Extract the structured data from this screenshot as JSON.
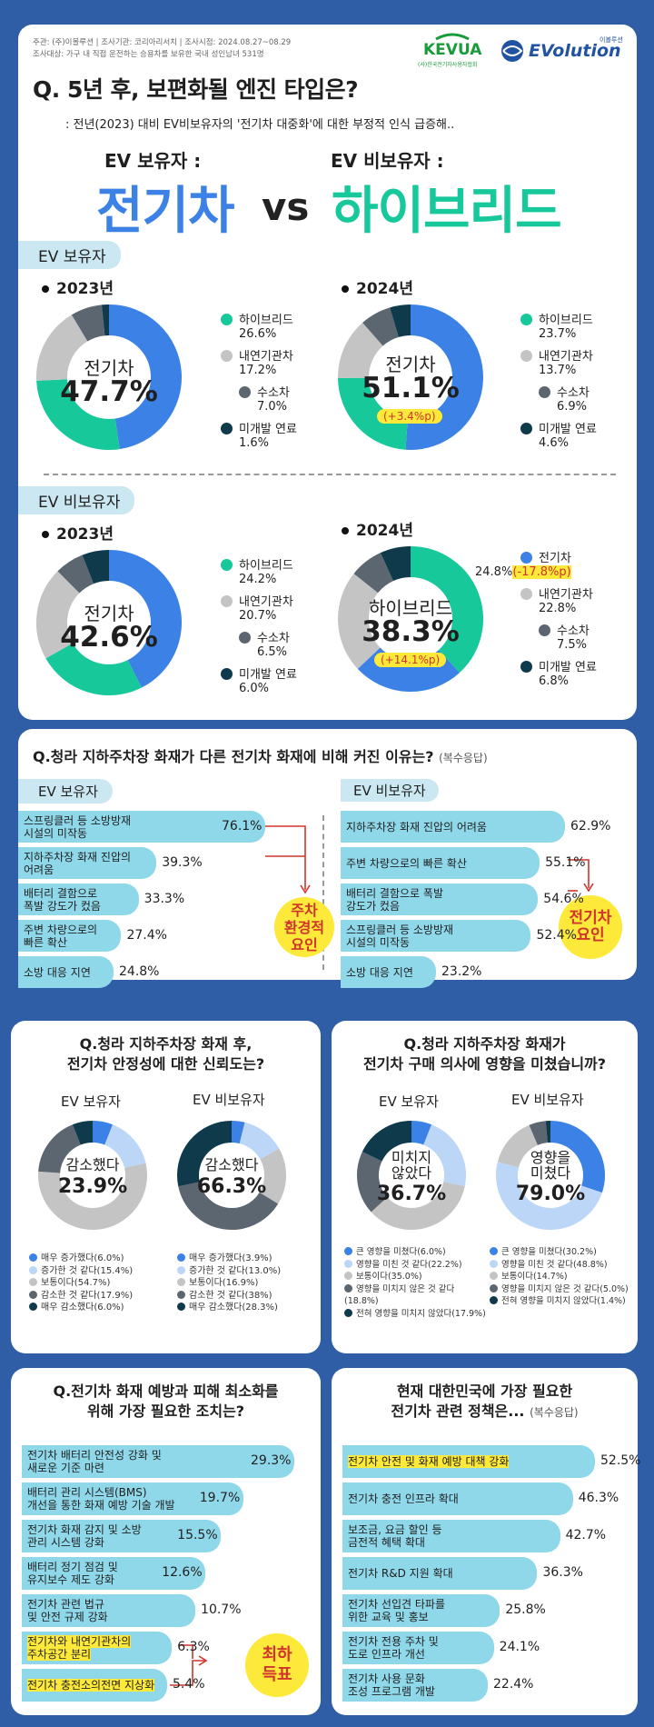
{
  "meta": {
    "line1": "주관: (주)이볼루션  |  조사기관: 코리아리서치  |  조사시점: 2024.08.27~08.29",
    "line2": "조사대상: 가구 내 직접 운전하는 승용차를 보유한 국내 성인남녀 531명"
  },
  "logos": {
    "kevua": "KEVUA",
    "kevua_sub": "(사)한국전기차사용자협회",
    "evolution": "EVolution",
    "evolution_tag": "이볼루션"
  },
  "colors": {
    "hybrid": "#17c99a",
    "ice": "#c4c4c4",
    "hydrogen": "#5c6670",
    "undeveloped": "#0f3a4c",
    "ev": "#3c82e6",
    "bar": "#8fd8ea",
    "highlight": "#fde93a",
    "red": "#d0342c"
  },
  "s1": {
    "question": "Q. 5년 후, 보편화될 엔진 타입은?",
    "subtitle": ": 전년(2023) 대비 EV비보유자의 '전기차 대중화'에 대한 부정적 인식 급증해..",
    "owner_label": "EV 보유자 :",
    "owner_answer": "전기차",
    "vs": "vs",
    "non_label": "EV 비보유자 :",
    "non_answer": "하이브리드",
    "sec_owner": "EV 보유자",
    "sec_non": "EV 비보유자"
  },
  "chart_data": [
    {
      "id": "owner2023",
      "type": "pie",
      "title": "EV 보유자 2023년",
      "year": "2023년",
      "center_name": "전기차",
      "center_value": "47.7%",
      "slices": [
        {
          "label": "전기차",
          "value": 47.7,
          "color": "#3c82e6"
        },
        {
          "label": "하이브리드",
          "value": 26.6,
          "color": "#17c99a"
        },
        {
          "label": "내연기관차",
          "value": 17.2,
          "color": "#c4c4c4"
        },
        {
          "label": "수소차",
          "value": 7.0,
          "color": "#5c6670"
        },
        {
          "label": "미개발 연료",
          "value": 1.6,
          "color": "#0f3a4c"
        }
      ],
      "legend": [
        {
          "label": "하이브리드",
          "pct": "26.6%"
        },
        {
          "label": "내연기관차",
          "pct": "17.2%"
        },
        {
          "label": "수소차",
          "pct": "7.0%"
        },
        {
          "label": "미개발 연료",
          "pct": "1.6%"
        }
      ]
    },
    {
      "id": "owner2024",
      "type": "pie",
      "title": "EV 보유자 2024년",
      "year": "2024년",
      "center_name": "전기차",
      "center_value": "51.1%",
      "delta": "(+3.4%p)",
      "slices": [
        {
          "label": "전기차",
          "value": 51.1,
          "color": "#3c82e6"
        },
        {
          "label": "하이브리드",
          "value": 23.7,
          "color": "#17c99a"
        },
        {
          "label": "내연기관차",
          "value": 13.7,
          "color": "#c4c4c4"
        },
        {
          "label": "수소차",
          "value": 6.9,
          "color": "#5c6670"
        },
        {
          "label": "미개발 연료",
          "value": 4.6,
          "color": "#0f3a4c"
        }
      ],
      "legend": [
        {
          "label": "하이브리드",
          "pct": "23.7%"
        },
        {
          "label": "내연기관차",
          "pct": "13.7%"
        },
        {
          "label": "수소차",
          "pct": "6.9%"
        },
        {
          "label": "미개발 연료",
          "pct": "4.6%"
        }
      ]
    },
    {
      "id": "non2023",
      "type": "pie",
      "title": "EV 비보유자 2023년",
      "year": "2023년",
      "center_name": "전기차",
      "center_value": "42.6%",
      "slices": [
        {
          "label": "전기차",
          "value": 42.6,
          "color": "#3c82e6"
        },
        {
          "label": "하이브리드",
          "value": 24.2,
          "color": "#17c99a"
        },
        {
          "label": "내연기관차",
          "value": 20.7,
          "color": "#c4c4c4"
        },
        {
          "label": "수소차",
          "value": 6.5,
          "color": "#5c6670"
        },
        {
          "label": "미개발 연료",
          "value": 6.0,
          "color": "#0f3a4c"
        }
      ],
      "legend": [
        {
          "label": "하이브리드",
          "pct": "24.2%"
        },
        {
          "label": "내연기관차",
          "pct": "20.7%"
        },
        {
          "label": "수소차",
          "pct": "6.5%"
        },
        {
          "label": "미개발 연료",
          "pct": "6.0%"
        }
      ]
    },
    {
      "id": "non2024",
      "type": "pie",
      "title": "EV 비보유자 2024년",
      "year": "2024년",
      "center_name": "하이브리드",
      "center_value": "38.3%",
      "delta": "(+14.1%p)",
      "slices": [
        {
          "label": "하이브리드",
          "value": 38.3,
          "color": "#17c99a"
        },
        {
          "label": "전기차",
          "value": 24.8,
          "color": "#3c82e6"
        },
        {
          "label": "내연기관차",
          "value": 22.8,
          "color": "#c4c4c4"
        },
        {
          "label": "수소차",
          "value": 7.5,
          "color": "#5c6670"
        },
        {
          "label": "미개발 연료",
          "value": 6.8,
          "color": "#0f3a4c"
        }
      ],
      "legend": [
        {
          "label": "전기차",
          "pct": "24.8%",
          "delta": "(-17.8%p)"
        },
        {
          "label": "내연기관차",
          "pct": "22.8%"
        },
        {
          "label": "수소차",
          "pct": "7.5%"
        },
        {
          "label": "미개발 연료",
          "pct": "6.8%"
        }
      ]
    },
    {
      "id": "fire_owner",
      "type": "bar",
      "title": "EV 보유자",
      "categories": [
        "스프링클러 등 소방방재 시설의 미작동",
        "지하주차장 화재 진압의 어려움",
        "배터리 결함으로 폭발 강도가 컸음",
        "주변 차량으로의 빠른 확산",
        "소방 대응 지연"
      ],
      "values": [
        76.1,
        39.3,
        33.3,
        27.4,
        24.8
      ],
      "labels": [
        "76.1%",
        "39.3%",
        "33.3%",
        "27.4%",
        "24.8%"
      ]
    },
    {
      "id": "fire_non",
      "type": "bar",
      "title": "EV 비보유자",
      "categories": [
        "지하주차장 화재 진압의 어려움",
        "주변 차량으로의 빠른 확산",
        "배터리 결함으로 폭발 강도가 컸음",
        "스프링클러 등 소방방재 시설의 미작동",
        "소방 대응 지연"
      ],
      "values": [
        62.9,
        55.1,
        54.6,
        52.4,
        23.2
      ],
      "labels": [
        "62.9%",
        "55.1%",
        "54.6%",
        "52.4%",
        "23.2%"
      ]
    },
    {
      "id": "trust_owner",
      "type": "pie",
      "title": "EV 보유자",
      "center_name": "감소했다",
      "center_value": "23.9%",
      "slices": [
        {
          "label": "매우 증가했다",
          "value": 6.0,
          "color": "#3c82e6"
        },
        {
          "label": "증가한 것 같다",
          "value": 15.4,
          "color": "#bcd6f7"
        },
        {
          "label": "보통이다",
          "value": 54.7,
          "color": "#c4c4c4"
        },
        {
          "label": "감소한 것 같다",
          "value": 17.9,
          "color": "#5c6670"
        },
        {
          "label": "매우 감소했다",
          "value": 6.0,
          "color": "#0f3a4c"
        }
      ],
      "legend": [
        {
          "label": "매우 증가했다",
          "pct": "(6.0%)"
        },
        {
          "label": "증가한 것 같다",
          "pct": "(15.4%)"
        },
        {
          "label": "보통이다",
          "pct": "(54.7%)"
        },
        {
          "label": "감소한 것 같다",
          "pct": "(17.9%)"
        },
        {
          "label": "매우 감소했다",
          "pct": "(6.0%)"
        }
      ]
    },
    {
      "id": "trust_non",
      "type": "pie",
      "title": "EV 비보유자",
      "center_name": "감소했다",
      "center_value": "66.3%",
      "slices": [
        {
          "label": "매우 증가했다",
          "value": 3.9,
          "color": "#3c82e6"
        },
        {
          "label": "증가한 것 같다",
          "value": 13.0,
          "color": "#bcd6f7"
        },
        {
          "label": "보통이다",
          "value": 16.9,
          "color": "#c4c4c4"
        },
        {
          "label": "감소한 것 같다",
          "value": 38,
          "color": "#5c6670"
        },
        {
          "label": "매우 감소했다",
          "value": 28.3,
          "color": "#0f3a4c"
        }
      ],
      "legend": [
        {
          "label": "매우 증가했다",
          "pct": "(3.9%)"
        },
        {
          "label": "증가한 것 같다",
          "pct": "(13.0%)"
        },
        {
          "label": "보통이다",
          "pct": "(16.9%)"
        },
        {
          "label": "감소한 것 같다",
          "pct": "(38%)"
        },
        {
          "label": "매우 감소했다",
          "pct": "(28.3%)"
        }
      ]
    },
    {
      "id": "intent_owner",
      "type": "pie",
      "title": "EV 보유자",
      "center_name": "미치지 않았다",
      "center_value": "36.7%",
      "slices": [
        {
          "label": "큰 영향을 미쳤다",
          "value": 6.0,
          "color": "#3c82e6"
        },
        {
          "label": "영향을 미친 것 같다",
          "value": 22.2,
          "color": "#bcd6f7"
        },
        {
          "label": "보통이다",
          "value": 35.0,
          "color": "#c4c4c4"
        },
        {
          "label": "영향을 미치지 않은 것 같다",
          "value": 18.8,
          "color": "#5c6670"
        },
        {
          "label": "전혀 영향을 미치지 않았다",
          "value": 17.9,
          "color": "#0f3a4c"
        }
      ],
      "legend": [
        {
          "label": "큰 영향을 미쳤다",
          "pct": "(6.0%)"
        },
        {
          "label": "영향을 미친 것 같다",
          "pct": "(22.2%)"
        },
        {
          "label": "보통이다",
          "pct": "(35.0%)"
        },
        {
          "label": "영향을 미치지 않은 것 같다",
          "pct": "(18.8%)"
        },
        {
          "label": "전혀 영향을 미치지 않았다",
          "pct": "(17.9%)"
        }
      ]
    },
    {
      "id": "intent_non",
      "type": "pie",
      "title": "EV 비보유자",
      "center_name": "영향을 미쳤다",
      "center_value": "79.0%",
      "slices": [
        {
          "label": "큰 영향을 미쳤다",
          "value": 30.2,
          "color": "#3c82e6"
        },
        {
          "label": "영향을 미친 것 같다",
          "value": 48.8,
          "color": "#bcd6f7"
        },
        {
          "label": "보통이다",
          "value": 14.7,
          "color": "#c4c4c4"
        },
        {
          "label": "영향을 미치지 않은 것 같다",
          "value": 5.0,
          "color": "#5c6670"
        },
        {
          "label": "전혀 영향을 미치지 않았다",
          "value": 1.4,
          "color": "#0f3a4c"
        }
      ],
      "legend": [
        {
          "label": "큰 영향을 미쳤다",
          "pct": "(30.2%)"
        },
        {
          "label": "영향을 미친 것 같다",
          "pct": "(48.8%)"
        },
        {
          "label": "보통이다",
          "pct": "(14.7%)"
        },
        {
          "label": "영향을 미치지 않은 것 같다",
          "pct": "(5.0%)"
        },
        {
          "label": "전혀 영향을 미치지 않았다",
          "pct": "(1.4%)"
        }
      ]
    },
    {
      "id": "prevention",
      "type": "bar",
      "title": "Q.전기차 화재 예방과 피해 최소화를 위해 가장 필요한 조치는?",
      "categories": [
        "전기차 배터리 안전성 강화 및 새로운 기준 마련",
        "배터리 관리 시스템(BMS) 개선을 통한 화재 예방 기술 개발",
        "전기차 화재 감지 및 소방 관리 시스템 강화",
        "배터리 정기 점검 및 유지보수 제도 강화",
        "전기차 관련 법규 및 안전 규제 강화",
        "전기차와 내연기관차의 주차공간 분리",
        "전기차 충전소의 전면 지상화"
      ],
      "values": [
        29.3,
        19.7,
        15.5,
        12.6,
        10.7,
        6.3,
        5.4
      ],
      "labels": [
        "29.3%",
        "19.7%",
        "15.5%",
        "12.6%",
        "10.7%",
        "6.3%",
        "5.4%"
      ]
    },
    {
      "id": "policy",
      "type": "bar",
      "title": "현재 대한민국에 가장 필요한 전기차 관련 정책은...",
      "categories": [
        "전기차 안전 및 화재 예방 대책 강화",
        "전기차 충전 인프라 확대",
        "보조금, 요금 할인 등 금전적 혜택 확대",
        "전기차 R&D 지원 확대",
        "전기차 선입견 타파를 위한 교육 및 홍보",
        "전기차 전용 주차 및 도로 인프라 개선",
        "전기차 사용 문화 조성 프로그램 개발"
      ],
      "values": [
        52.5,
        46.3,
        42.7,
        36.3,
        25.8,
        24.1,
        22.4
      ],
      "labels": [
        "52.5%",
        "46.3%",
        "42.7%",
        "36.3%",
        "25.8%",
        "24.1%",
        "22.4%"
      ]
    }
  ],
  "s2": {
    "q": "Q.청라 지하주차장 화재가 다른 전기차 화재에 비해 커진 이유는?",
    "q_note": "(복수응답)",
    "owner_head": "EV 보유자",
    "non_head": "EV 비보유자",
    "owner_bars": [
      {
        "l1": "스프링클러 등 소방방재",
        "l2": "시설의 미작동"
      },
      {
        "l1": "지하주차장 화재 진압의",
        "l2": "어려움"
      },
      {
        "l1": "배터리 결함으로",
        "l2": "폭발 강도가 컸음"
      },
      {
        "l1": "주변 차량으로의",
        "l2": "빠른 확산"
      },
      {
        "l1": "소방 대응 지연",
        "l2": ""
      }
    ],
    "non_bars": [
      {
        "l1": "지하주차장 화재 진압의 어려움",
        "l2": ""
      },
      {
        "l1": "주변 차량으로의 빠른 확산",
        "l2": ""
      },
      {
        "l1": "배터리 결함으로 폭발",
        "l2": "강도가 컸음"
      },
      {
        "l1": "스프링클러 등 소방방재",
        "l2": "시설의 미작동"
      },
      {
        "l1": "소방 대응 지연",
        "l2": ""
      }
    ],
    "owner_circle_l1": "주차",
    "owner_circle_l2": "환경적",
    "owner_circle_l3": "요인",
    "non_circle_l1": "전기차",
    "non_circle_l2": "요인"
  },
  "s3": {
    "q_l1": "Q.청라 지하주차장 화재 후,",
    "q_l2": "전기차 안정성에 대한 신뢰도는?",
    "h1": "EV 보유자",
    "h2": "EV 비보유자"
  },
  "s4": {
    "q_l1": "Q.청라 지하주차장 화재가",
    "q_l2": "전기차 구매 의사에 영향을 미쳤습니까?",
    "h1": "EV 보유자",
    "h2": "EV 비보유자",
    "c1_l1": "미치지",
    "c1_l2": "않았다",
    "c2_l1": "영향을",
    "c2_l2": "미쳤다"
  },
  "s5": {
    "q_l1": "Q.전기차 화재 예방과 피해 최소화를",
    "q_l2": "위해 가장 필요한 조치는?",
    "bars": [
      {
        "l1": "전기차 배터리 안전성 강화 및",
        "l2": "새로운 기준 마련"
      },
      {
        "l1": "배터리 관리 시스템(BMS)",
        "l2": "개선을 통한 화재 예방 기술 개발"
      },
      {
        "l1": "전기차 화재 감지 및 소방",
        "l2": "관리 시스템 강화"
      },
      {
        "l1": "배터리 정기 점검 및",
        "l2": "유지보수 제도 강화"
      },
      {
        "l1": "전기차 관련 법규",
        "l2": "및 안전 규제 강화"
      },
      {
        "l1": "전기차와 내연기관차의",
        "l2": "주차공간 분리"
      },
      {
        "l1": "전기차 충전소의",
        "l2": "전면 지상화"
      }
    ],
    "circle_l1": "최하",
    "circle_l2": "득표"
  },
  "s6": {
    "q_l1": "현재 대한민국에 가장 필요한",
    "q_l2": "전기차 관련 정책은...",
    "q_note": "(복수응답)",
    "bars": [
      {
        "l1": "전기차 안전 및 화재 예방 대책 강화",
        "l2": ""
      },
      {
        "l1": "전기차 충전 인프라 확대",
        "l2": ""
      },
      {
        "l1": "보조금, 요금 할인 등",
        "l2": "금전적 혜택 확대"
      },
      {
        "l1": "전기차 R&D 지원 확대",
        "l2": ""
      },
      {
        "l1": "전기차 선입견 타파를",
        "l2": "위한 교육 및 홍보"
      },
      {
        "l1": "전기차 전용 주차 및",
        "l2": "도로 인프라 개선"
      },
      {
        "l1": "전기차 사용 문화",
        "l2": "조성 프로그램 개발"
      }
    ]
  }
}
